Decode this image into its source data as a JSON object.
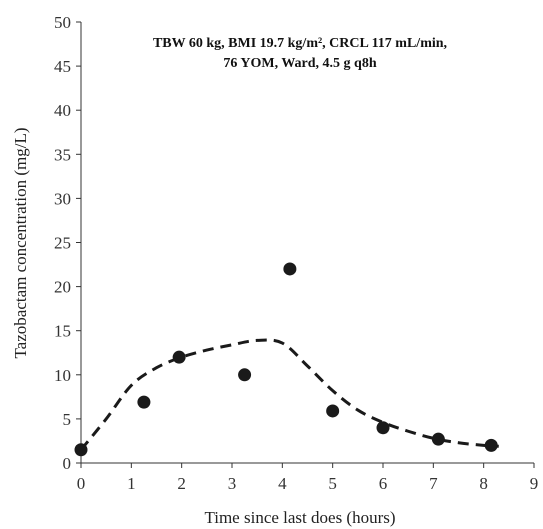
{
  "chart_data": {
    "type": "scatter",
    "title": "",
    "annotation_lines": [
      "TBW 60 kg, BMI 19.7 kg/m², CRCL 117 mL/min,",
      "76 YOM, Ward, 4.5 g q8h"
    ],
    "xlabel": "Time since last does (hours)",
    "ylabel": "Tazobactam concentration (mg/L)",
    "xlim": [
      0,
      9
    ],
    "ylim": [
      0,
      50
    ],
    "xticks": [
      0,
      1,
      2,
      3,
      4,
      5,
      6,
      7,
      8,
      9
    ],
    "yticks": [
      0,
      5,
      10,
      15,
      20,
      25,
      30,
      35,
      40,
      45,
      50
    ],
    "grid": false,
    "legend": "none",
    "series": [
      {
        "kind": "observed",
        "marker": "filled-circle",
        "color": "#1a1a1a",
        "x": [
          0.0,
          1.25,
          1.95,
          3.25,
          4.15,
          5.0,
          6.0,
          7.1,
          8.15
        ],
        "y": [
          1.5,
          6.9,
          12.0,
          10.0,
          22.0,
          5.9,
          4.0,
          2.7,
          2.0
        ]
      },
      {
        "kind": "predicted",
        "line_style": "dashed",
        "color": "#1a1a1a",
        "x": [
          0.0,
          0.5,
          1.0,
          1.5,
          2.0,
          2.5,
          3.0,
          3.5,
          4.0,
          4.5,
          5.0,
          5.5,
          6.0,
          6.5,
          7.0,
          7.5,
          8.0,
          8.3
        ],
        "y": [
          1.5,
          5.0,
          8.8,
          10.8,
          12.0,
          12.8,
          13.4,
          13.9,
          13.6,
          11.0,
          8.2,
          6.0,
          4.6,
          3.6,
          2.8,
          2.3,
          2.0,
          1.9
        ]
      }
    ]
  }
}
